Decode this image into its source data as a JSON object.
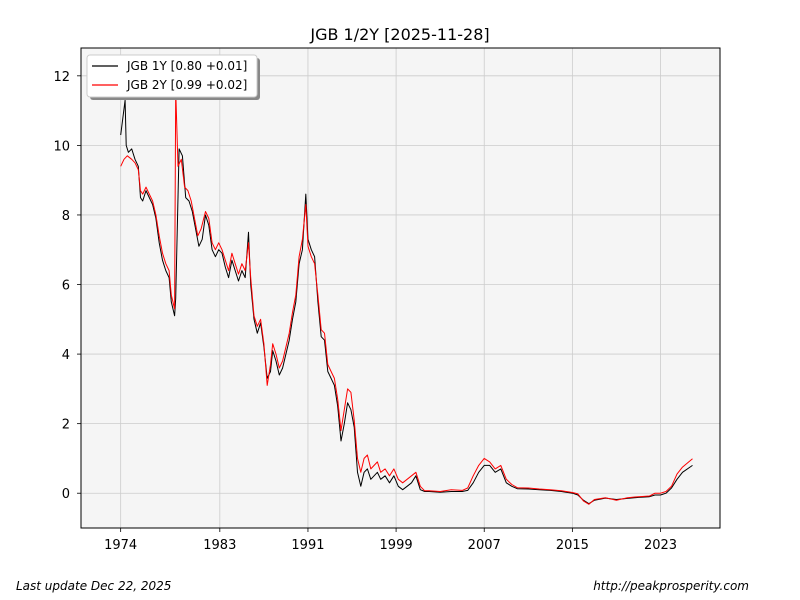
{
  "chart_data": {
    "type": "line",
    "title": "JGB 1/2Y  [2025-11-28]",
    "xlabel": "",
    "ylabel": "",
    "xlim": [
      1970.4,
      2028.4
    ],
    "ylim": [
      -1.0,
      12.8
    ],
    "x_ticks": [
      1974,
      1983,
      1991,
      1999,
      2007,
      2015,
      2023
    ],
    "y_ticks": [
      0,
      2,
      4,
      6,
      8,
      10,
      12
    ],
    "grid": true,
    "legend_position": "top-left",
    "background_color": "#f5f5f5",
    "series": [
      {
        "name": "JGB 1Y [0.80 +0.01]",
        "color": "#000000",
        "points": [
          [
            1974.0,
            10.3
          ],
          [
            1974.2,
            10.8
          ],
          [
            1974.4,
            11.3
          ],
          [
            1974.5,
            10.0
          ],
          [
            1974.7,
            9.8
          ],
          [
            1975.0,
            9.9
          ],
          [
            1975.3,
            9.6
          ],
          [
            1975.6,
            9.4
          ],
          [
            1975.8,
            8.5
          ],
          [
            1976.0,
            8.4
          ],
          [
            1976.3,
            8.7
          ],
          [
            1976.6,
            8.5
          ],
          [
            1976.9,
            8.3
          ],
          [
            1977.2,
            7.9
          ],
          [
            1977.5,
            7.2
          ],
          [
            1977.8,
            6.7
          ],
          [
            1978.1,
            6.4
          ],
          [
            1978.4,
            6.2
          ],
          [
            1978.6,
            5.5
          ],
          [
            1978.9,
            5.1
          ],
          [
            1979.0,
            5.6
          ],
          [
            1979.3,
            9.9
          ],
          [
            1979.6,
            9.7
          ],
          [
            1979.9,
            8.5
          ],
          [
            1980.2,
            8.4
          ],
          [
            1980.5,
            8.1
          ],
          [
            1980.8,
            7.6
          ],
          [
            1981.1,
            7.1
          ],
          [
            1981.4,
            7.3
          ],
          [
            1981.7,
            8.0
          ],
          [
            1982.0,
            7.7
          ],
          [
            1982.3,
            7.0
          ],
          [
            1982.6,
            6.8
          ],
          [
            1982.9,
            7.0
          ],
          [
            1983.2,
            6.9
          ],
          [
            1983.5,
            6.5
          ],
          [
            1983.8,
            6.2
          ],
          [
            1984.1,
            6.7
          ],
          [
            1984.4,
            6.4
          ],
          [
            1984.7,
            6.1
          ],
          [
            1985.0,
            6.4
          ],
          [
            1985.3,
            6.2
          ],
          [
            1985.6,
            7.5
          ],
          [
            1985.8,
            6.0
          ],
          [
            1986.1,
            5.0
          ],
          [
            1986.4,
            4.6
          ],
          [
            1986.7,
            4.9
          ],
          [
            1987.0,
            4.2
          ],
          [
            1987.3,
            3.3
          ],
          [
            1987.6,
            3.5
          ],
          [
            1987.8,
            4.1
          ],
          [
            1988.1,
            3.8
          ],
          [
            1988.4,
            3.4
          ],
          [
            1988.7,
            3.6
          ],
          [
            1989.0,
            4.0
          ],
          [
            1989.3,
            4.4
          ],
          [
            1989.6,
            5.0
          ],
          [
            1989.9,
            5.5
          ],
          [
            1990.2,
            6.6
          ],
          [
            1990.5,
            7.0
          ],
          [
            1990.8,
            8.6
          ],
          [
            1991.0,
            7.3
          ],
          [
            1991.3,
            7.0
          ],
          [
            1991.6,
            6.8
          ],
          [
            1991.9,
            5.5
          ],
          [
            1992.2,
            4.5
          ],
          [
            1992.5,
            4.4
          ],
          [
            1992.8,
            3.5
          ],
          [
            1993.1,
            3.3
          ],
          [
            1993.4,
            3.1
          ],
          [
            1993.7,
            2.5
          ],
          [
            1994.0,
            1.5
          ],
          [
            1994.3,
            2.0
          ],
          [
            1994.6,
            2.6
          ],
          [
            1994.9,
            2.4
          ],
          [
            1995.2,
            1.9
          ],
          [
            1995.5,
            0.6
          ],
          [
            1995.8,
            0.2
          ],
          [
            1996.1,
            0.6
          ],
          [
            1996.4,
            0.7
          ],
          [
            1996.7,
            0.4
          ],
          [
            1997.0,
            0.5
          ],
          [
            1997.3,
            0.6
          ],
          [
            1997.6,
            0.4
          ],
          [
            1998.0,
            0.5
          ],
          [
            1998.4,
            0.3
          ],
          [
            1998.8,
            0.5
          ],
          [
            1999.2,
            0.2
          ],
          [
            1999.6,
            0.1
          ],
          [
            2000.0,
            0.2
          ],
          [
            2000.4,
            0.3
          ],
          [
            2000.8,
            0.5
          ],
          [
            2001.2,
            0.1
          ],
          [
            2001.6,
            0.05
          ],
          [
            2002.0,
            0.05
          ],
          [
            2003.0,
            0.03
          ],
          [
            2004.0,
            0.05
          ],
          [
            2005.0,
            0.05
          ],
          [
            2005.5,
            0.08
          ],
          [
            2006.0,
            0.3
          ],
          [
            2006.5,
            0.6
          ],
          [
            2007.0,
            0.8
          ],
          [
            2007.5,
            0.8
          ],
          [
            2008.0,
            0.6
          ],
          [
            2008.5,
            0.7
          ],
          [
            2009.0,
            0.3
          ],
          [
            2009.5,
            0.2
          ],
          [
            2010.0,
            0.13
          ],
          [
            2011.0,
            0.12
          ],
          [
            2012.0,
            0.1
          ],
          [
            2013.0,
            0.08
          ],
          [
            2014.0,
            0.05
          ],
          [
            2015.0,
            0.0
          ],
          [
            2015.5,
            -0.05
          ],
          [
            2016.0,
            -0.2
          ],
          [
            2016.5,
            -0.3
          ],
          [
            2017.0,
            -0.2
          ],
          [
            2018.0,
            -0.14
          ],
          [
            2019.0,
            -0.18
          ],
          [
            2020.0,
            -0.15
          ],
          [
            2021.0,
            -0.12
          ],
          [
            2022.0,
            -0.1
          ],
          [
            2022.5,
            -0.05
          ],
          [
            2023.0,
            -0.05
          ],
          [
            2023.5,
            0.0
          ],
          [
            2024.0,
            0.15
          ],
          [
            2024.5,
            0.4
          ],
          [
            2025.0,
            0.6
          ],
          [
            2025.9,
            0.8
          ]
        ]
      },
      {
        "name": "JGB 2Y [0.99 +0.02]",
        "color": "#ff0000",
        "points": [
          [
            1974.0,
            9.4
          ],
          [
            1974.3,
            9.6
          ],
          [
            1974.6,
            9.7
          ],
          [
            1975.0,
            9.6
          ],
          [
            1975.3,
            9.5
          ],
          [
            1975.6,
            9.3
          ],
          [
            1975.8,
            8.7
          ],
          [
            1976.0,
            8.6
          ],
          [
            1976.3,
            8.8
          ],
          [
            1976.6,
            8.6
          ],
          [
            1976.9,
            8.4
          ],
          [
            1977.2,
            8.0
          ],
          [
            1977.5,
            7.4
          ],
          [
            1977.8,
            6.9
          ],
          [
            1978.1,
            6.6
          ],
          [
            1978.4,
            6.4
          ],
          [
            1978.6,
            5.7
          ],
          [
            1978.9,
            5.3
          ],
          [
            1979.0,
            11.6
          ],
          [
            1979.2,
            9.4
          ],
          [
            1979.5,
            9.6
          ],
          [
            1979.8,
            8.8
          ],
          [
            1980.1,
            8.7
          ],
          [
            1980.4,
            8.4
          ],
          [
            1980.7,
            7.9
          ],
          [
            1981.0,
            7.4
          ],
          [
            1981.3,
            7.6
          ],
          [
            1981.7,
            8.1
          ],
          [
            1982.0,
            7.9
          ],
          [
            1982.3,
            7.2
          ],
          [
            1982.6,
            7.0
          ],
          [
            1982.9,
            7.2
          ],
          [
            1983.2,
            7.0
          ],
          [
            1983.5,
            6.7
          ],
          [
            1983.8,
            6.4
          ],
          [
            1984.1,
            6.9
          ],
          [
            1984.4,
            6.6
          ],
          [
            1984.7,
            6.3
          ],
          [
            1985.0,
            6.6
          ],
          [
            1985.3,
            6.4
          ],
          [
            1985.6,
            7.2
          ],
          [
            1985.8,
            6.2
          ],
          [
            1986.1,
            5.1
          ],
          [
            1986.4,
            4.8
          ],
          [
            1986.7,
            5.0
          ],
          [
            1987.0,
            4.3
          ],
          [
            1987.3,
            3.1
          ],
          [
            1987.6,
            3.7
          ],
          [
            1987.8,
            4.3
          ],
          [
            1988.1,
            4.0
          ],
          [
            1988.4,
            3.6
          ],
          [
            1988.7,
            3.8
          ],
          [
            1989.0,
            4.2
          ],
          [
            1989.3,
            4.6
          ],
          [
            1989.6,
            5.2
          ],
          [
            1989.9,
            5.7
          ],
          [
            1990.2,
            6.8
          ],
          [
            1990.5,
            7.3
          ],
          [
            1990.8,
            8.3
          ],
          [
            1991.0,
            7.1
          ],
          [
            1991.3,
            6.8
          ],
          [
            1991.6,
            6.6
          ],
          [
            1991.9,
            5.7
          ],
          [
            1992.2,
            4.7
          ],
          [
            1992.5,
            4.6
          ],
          [
            1992.8,
            3.7
          ],
          [
            1993.1,
            3.5
          ],
          [
            1993.4,
            3.3
          ],
          [
            1993.7,
            2.7
          ],
          [
            1994.0,
            1.8
          ],
          [
            1994.3,
            2.4
          ],
          [
            1994.6,
            3.0
          ],
          [
            1994.9,
            2.9
          ],
          [
            1995.2,
            2.1
          ],
          [
            1995.5,
            1.0
          ],
          [
            1995.8,
            0.6
          ],
          [
            1996.1,
            1.0
          ],
          [
            1996.4,
            1.1
          ],
          [
            1996.7,
            0.7
          ],
          [
            1997.0,
            0.8
          ],
          [
            1997.3,
            0.9
          ],
          [
            1997.6,
            0.6
          ],
          [
            1998.0,
            0.7
          ],
          [
            1998.4,
            0.5
          ],
          [
            1998.8,
            0.7
          ],
          [
            1999.2,
            0.4
          ],
          [
            1999.6,
            0.3
          ],
          [
            2000.0,
            0.4
          ],
          [
            2000.4,
            0.5
          ],
          [
            2000.8,
            0.6
          ],
          [
            2001.2,
            0.2
          ],
          [
            2001.6,
            0.07
          ],
          [
            2002.0,
            0.07
          ],
          [
            2003.0,
            0.05
          ],
          [
            2004.0,
            0.1
          ],
          [
            2005.0,
            0.08
          ],
          [
            2005.5,
            0.15
          ],
          [
            2006.0,
            0.5
          ],
          [
            2006.5,
            0.8
          ],
          [
            2007.0,
            1.0
          ],
          [
            2007.5,
            0.9
          ],
          [
            2008.0,
            0.7
          ],
          [
            2008.5,
            0.8
          ],
          [
            2009.0,
            0.4
          ],
          [
            2009.5,
            0.25
          ],
          [
            2010.0,
            0.16
          ],
          [
            2011.0,
            0.15
          ],
          [
            2012.0,
            0.12
          ],
          [
            2013.0,
            0.1
          ],
          [
            2014.0,
            0.07
          ],
          [
            2015.0,
            0.02
          ],
          [
            2015.5,
            -0.02
          ],
          [
            2016.0,
            -0.22
          ],
          [
            2016.5,
            -0.32
          ],
          [
            2017.0,
            -0.18
          ],
          [
            2018.0,
            -0.13
          ],
          [
            2019.0,
            -0.2
          ],
          [
            2020.0,
            -0.13
          ],
          [
            2021.0,
            -0.1
          ],
          [
            2022.0,
            -0.08
          ],
          [
            2022.5,
            0.0
          ],
          [
            2023.0,
            0.0
          ],
          [
            2023.5,
            0.05
          ],
          [
            2024.0,
            0.2
          ],
          [
            2024.5,
            0.55
          ],
          [
            2025.0,
            0.75
          ],
          [
            2025.9,
            0.99
          ]
        ]
      }
    ]
  },
  "footer": {
    "last_update": "Last update Dec 22, 2025",
    "source": "http://peakprosperity.com"
  }
}
